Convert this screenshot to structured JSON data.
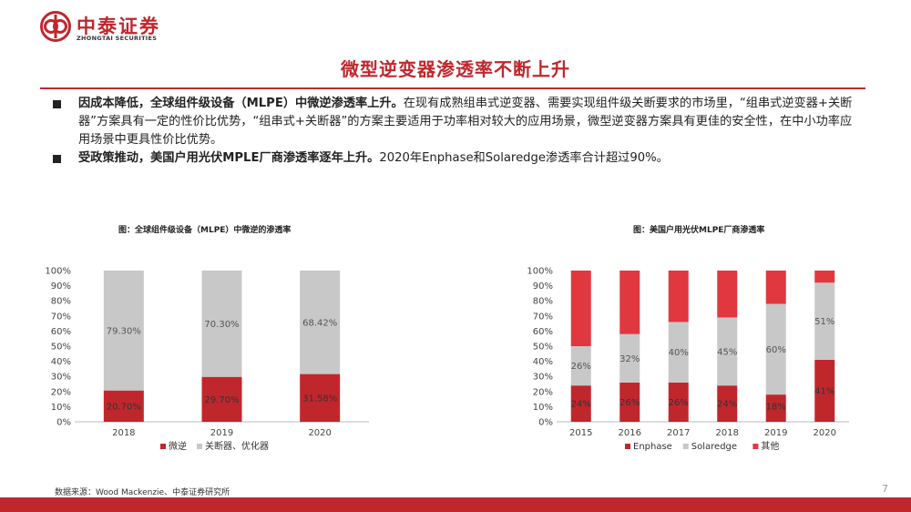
{
  "header": {
    "logo_cn": "中泰证券",
    "logo_en": "ZHONGTAI SECURITIES"
  },
  "slide_title": "微型逆变器渗透率不断上升",
  "bullets": [
    {
      "bold": "因成本降低，全球组件级设备（MLPE）中微逆渗透率上升。",
      "text": "在现有成熟组串式逆变器、需要实现组件级关断要求的市场里，“组串式逆变器+关断器”方案具有一定的性价比优势，“组串式+关断器”的方案主要适用于功率相对较大的应用场景，微型逆变器方案具有更佳的安全性，在中小功率应用场景中更具性价比优势。"
    },
    {
      "bold": "受政策推动，美国户用光伏MPLE厂商渗透率逐年上升。",
      "text": "2020年Enphase和Solaredge渗透率合计超过90%。"
    }
  ],
  "chart_data": [
    {
      "type": "bar",
      "stacked": true,
      "title": "图：全球组件级设备（MLPE）中微逆的渗透率",
      "categories": [
        "2018",
        "2019",
        "2020"
      ],
      "series": [
        {
          "name": "微逆",
          "values": [
            20.7,
            29.7,
            31.58
          ],
          "labels": [
            "20.70%",
            "29.70%",
            "31.58%"
          ],
          "color": "#c0272d"
        },
        {
          "name": "关断器、优化器",
          "values": [
            79.3,
            70.3,
            68.42
          ],
          "labels": [
            "79.30%",
            "70.30%",
            "68.42%"
          ],
          "color": "#c8c8c8"
        }
      ],
      "y_ticks": [
        "0%",
        "10%",
        "20%",
        "30%",
        "40%",
        "50%",
        "60%",
        "70%",
        "80%",
        "90%",
        "100%"
      ],
      "ylim": [
        0,
        100
      ],
      "grid": false,
      "legend": "bottom"
    },
    {
      "type": "bar",
      "stacked": true,
      "title": "图：美国户用光伏MLPE厂商渗透率",
      "categories": [
        "2015",
        "2016",
        "2017",
        "2018",
        "2019",
        "2020"
      ],
      "series": [
        {
          "name": "Enphase",
          "values": [
            24,
            26,
            26,
            24,
            18,
            41
          ],
          "labels": [
            "24%",
            "26%",
            "26%",
            "24%",
            "18%",
            "41%"
          ],
          "color": "#c0272d"
        },
        {
          "name": "Solaredge",
          "values": [
            26,
            32,
            40,
            45,
            60,
            51
          ],
          "labels": [
            "26%",
            "32%",
            "40%",
            "45%",
            "60%",
            "51%"
          ],
          "color": "#c8c8c8"
        },
        {
          "name": "其他",
          "values": [
            50,
            42,
            34,
            31,
            22,
            8
          ],
          "labels": [
            "",
            "",
            "",
            "",
            "",
            ""
          ],
          "color": "#e0383e"
        }
      ],
      "y_ticks": [
        "0%",
        "10%",
        "20%",
        "30%",
        "40%",
        "50%",
        "60%",
        "70%",
        "80%",
        "90%",
        "100%"
      ],
      "ylim": [
        0,
        100
      ],
      "grid": false,
      "legend": "bottom"
    }
  ],
  "footer": {
    "source": "数据来源：Wood Mackenzie、中泰证券研究所",
    "page_number": "7"
  }
}
